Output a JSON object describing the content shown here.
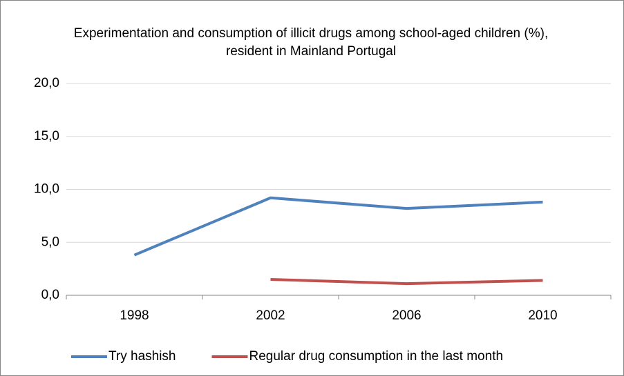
{
  "chart_data": {
    "type": "line",
    "title": "Experimentation and consumption of illicit drugs among school-aged children (%), resident in Mainland Portugal",
    "categories": [
      "1998",
      "2002",
      "2006",
      "2010"
    ],
    "series": [
      {
        "name": "Try hashish",
        "color": "#4f81bd",
        "values": [
          3.8,
          9.2,
          8.2,
          8.8
        ]
      },
      {
        "name": "Regular drug consumption in the last month",
        "color": "#c0504d",
        "values": [
          null,
          1.5,
          1.1,
          1.4
        ]
      }
    ],
    "ylim": [
      0,
      20
    ],
    "yticks": [
      {
        "value": 0,
        "label": "0,0"
      },
      {
        "value": 5,
        "label": "5,0"
      },
      {
        "value": 10,
        "label": "10,0"
      },
      {
        "value": 15,
        "label": "15,0"
      },
      {
        "value": 20,
        "label": "20,0"
      }
    ],
    "grid": true,
    "legend": "bottom"
  }
}
